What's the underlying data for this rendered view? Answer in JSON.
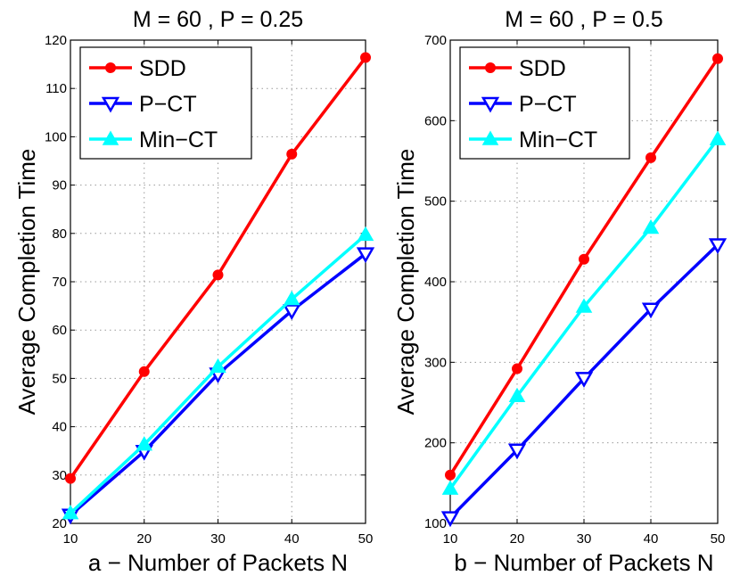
{
  "chart_data": [
    {
      "type": "line",
      "title": "M = 60 , P = 0.25",
      "xlabel": "a − Number of Packets N",
      "ylabel": "Average Completion Time",
      "x": [
        10,
        20,
        30,
        40,
        50
      ],
      "xlim": [
        10,
        50
      ],
      "ylim": [
        20,
        120
      ],
      "xticks": [
        10,
        20,
        30,
        40,
        50
      ],
      "yticks": [
        20,
        30,
        40,
        50,
        60,
        70,
        80,
        90,
        100,
        110,
        120
      ],
      "grid": true,
      "legend_position": "top-left",
      "series": [
        {
          "name": "SDD",
          "color": "#ff0000",
          "marker": "circle",
          "values": [
            29.3,
            51.4,
            71.4,
            96.4,
            116.4
          ]
        },
        {
          "name": "P−CT",
          "color": "#0000ff",
          "marker": "triangle-down",
          "values": [
            21.7,
            34.9,
            50.9,
            64.0,
            75.8
          ]
        },
        {
          "name": "Min−CT",
          "color": "#00ffff",
          "marker": "triangle-up",
          "values": [
            22.1,
            36.3,
            52.4,
            66.4,
            79.7
          ]
        }
      ]
    },
    {
      "type": "line",
      "title": "M = 60 , P = 0.5",
      "xlabel": "b − Number of Packets N",
      "ylabel": "Average Completion Time",
      "x": [
        10,
        20,
        30,
        40,
        50
      ],
      "xlim": [
        10,
        50
      ],
      "ylim": [
        100,
        700
      ],
      "xticks": [
        10,
        20,
        30,
        40,
        50
      ],
      "yticks": [
        100,
        200,
        300,
        400,
        500,
        600,
        700
      ],
      "grid": true,
      "legend_position": "top-left",
      "series": [
        {
          "name": "SDD",
          "color": "#ff0000",
          "marker": "circle",
          "values": [
            160,
            292,
            428,
            554,
            677
          ]
        },
        {
          "name": "P−CT",
          "color": "#0000ff",
          "marker": "triangle-down",
          "values": [
            107,
            191,
            280,
            366,
            446
          ]
        },
        {
          "name": "Min−CT",
          "color": "#00ffff",
          "marker": "triangle-up",
          "values": [
            143,
            258,
            369,
            467,
            577
          ]
        }
      ]
    }
  ]
}
